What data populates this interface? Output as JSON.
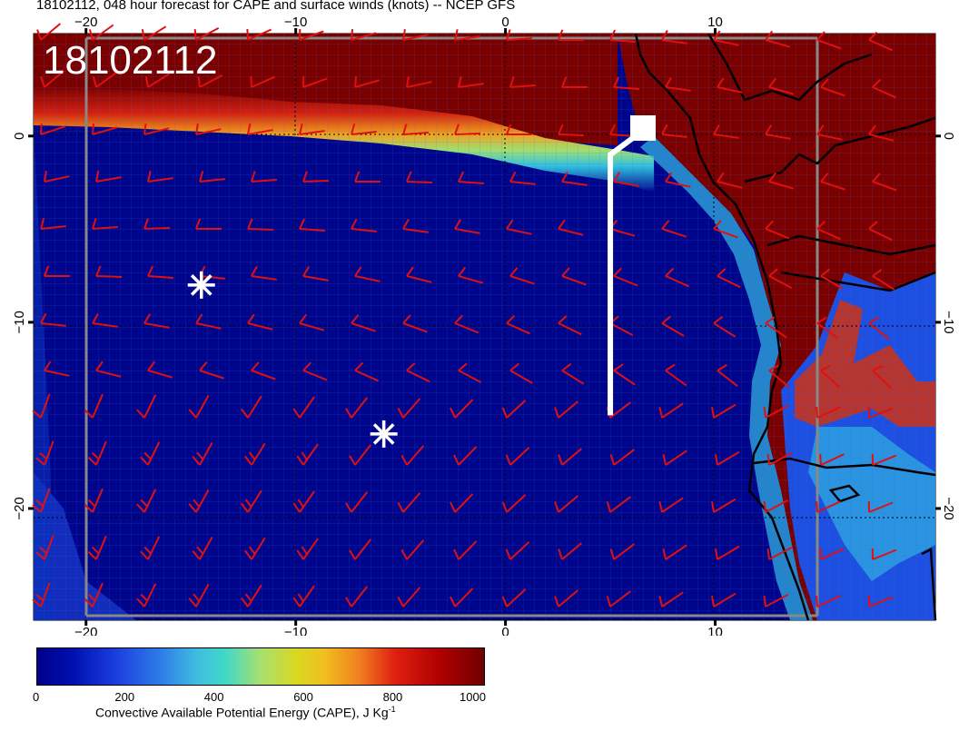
{
  "title": "18102112, 048 hour forecast for CAPE and surface winds (knots) -- NCEP GFS",
  "run_label": "18102112",
  "map": {
    "lon_range": [
      -22.5,
      20.5
    ],
    "lat_range": [
      -26,
      5.5
    ],
    "lon_ticks": [
      {
        "label": "−20",
        "value": -20
      },
      {
        "label": "−10",
        "value": -10
      },
      {
        "label": "0",
        "value": 0
      },
      {
        "label": "10",
        "value": 10
      }
    ],
    "lat_ticks": [
      {
        "label": "0",
        "value": 0
      },
      {
        "label": "−10",
        "value": -10
      },
      {
        "label": "−20",
        "value": -20
      }
    ],
    "markers": [
      {
        "name": "asterisk-marker-west",
        "lon": -14.5,
        "lat": -8
      },
      {
        "name": "asterisk-marker-south",
        "lon": -5.8,
        "lat": -16
      }
    ],
    "flight_track": [
      [
        5,
        -15
      ],
      [
        5,
        -1
      ],
      [
        6.2,
        0
      ],
      [
        6.7,
        0.2
      ]
    ],
    "colors": {
      "ocean_low_cape": "#00068c",
      "land_high_cape": "#7a0000",
      "wind_barbs": "#e01010",
      "coastline": "#000000",
      "track": "#ffffff"
    }
  },
  "colorbar": {
    "ticks": [
      {
        "label": "0",
        "value": 0
      },
      {
        "label": "200",
        "value": 200
      },
      {
        "label": "400",
        "value": 400
      },
      {
        "label": "600",
        "value": 600
      },
      {
        "label": "800",
        "value": 800
      },
      {
        "label": "1000",
        "value": 1000
      }
    ],
    "range": [
      0,
      1000
    ],
    "label_main": "Convective Available Potential Energy (CAPE), J Kg",
    "label_sup": "-1"
  }
}
